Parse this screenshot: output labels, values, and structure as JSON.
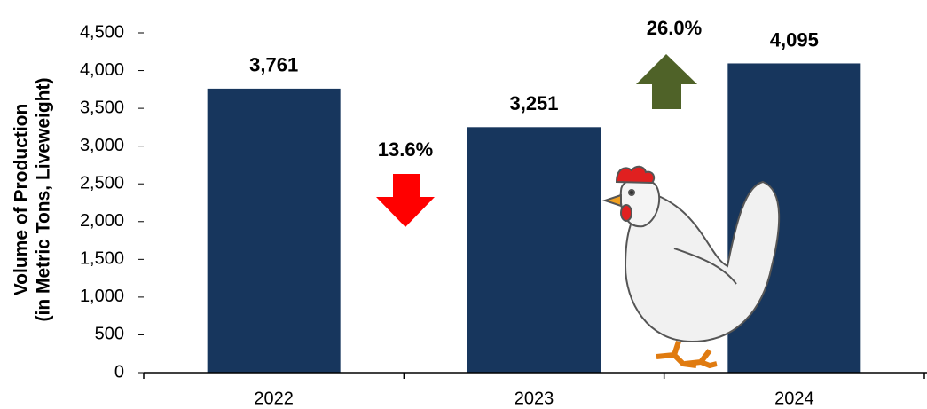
{
  "chart_data": {
    "type": "bar",
    "y_axis_label": [
      "Volume of Production",
      "(in Metric Tons, Liveweight)"
    ],
    "categories": [
      "2022",
      "2023",
      "2024"
    ],
    "values": [
      3761,
      3251,
      4095
    ],
    "value_labels": [
      "3,761",
      "3,251",
      "4,095"
    ],
    "color": "#17365d",
    "ylim": [
      0,
      4500
    ],
    "yticks": [
      0,
      500,
      {
        "value": 1000,
        "label": "1,000"
      },
      {
        "value": 1500,
        "label": "1,500"
      },
      {
        "value": 2000,
        "label": "2,000"
      },
      {
        "value": 2500,
        "label": "2,500"
      },
      {
        "value": 3000,
        "label": "3,000"
      },
      {
        "value": 3500,
        "label": "3,500"
      },
      {
        "value": 4000,
        "label": "4,000"
      },
      {
        "value": 4500,
        "label": "4,500"
      }
    ],
    "grid": false,
    "annotations": [
      {
        "text": "13.6%",
        "color": "#ff0000"
      },
      {
        "text": "26.0%",
        "color": "#4f6228"
      }
    ]
  }
}
